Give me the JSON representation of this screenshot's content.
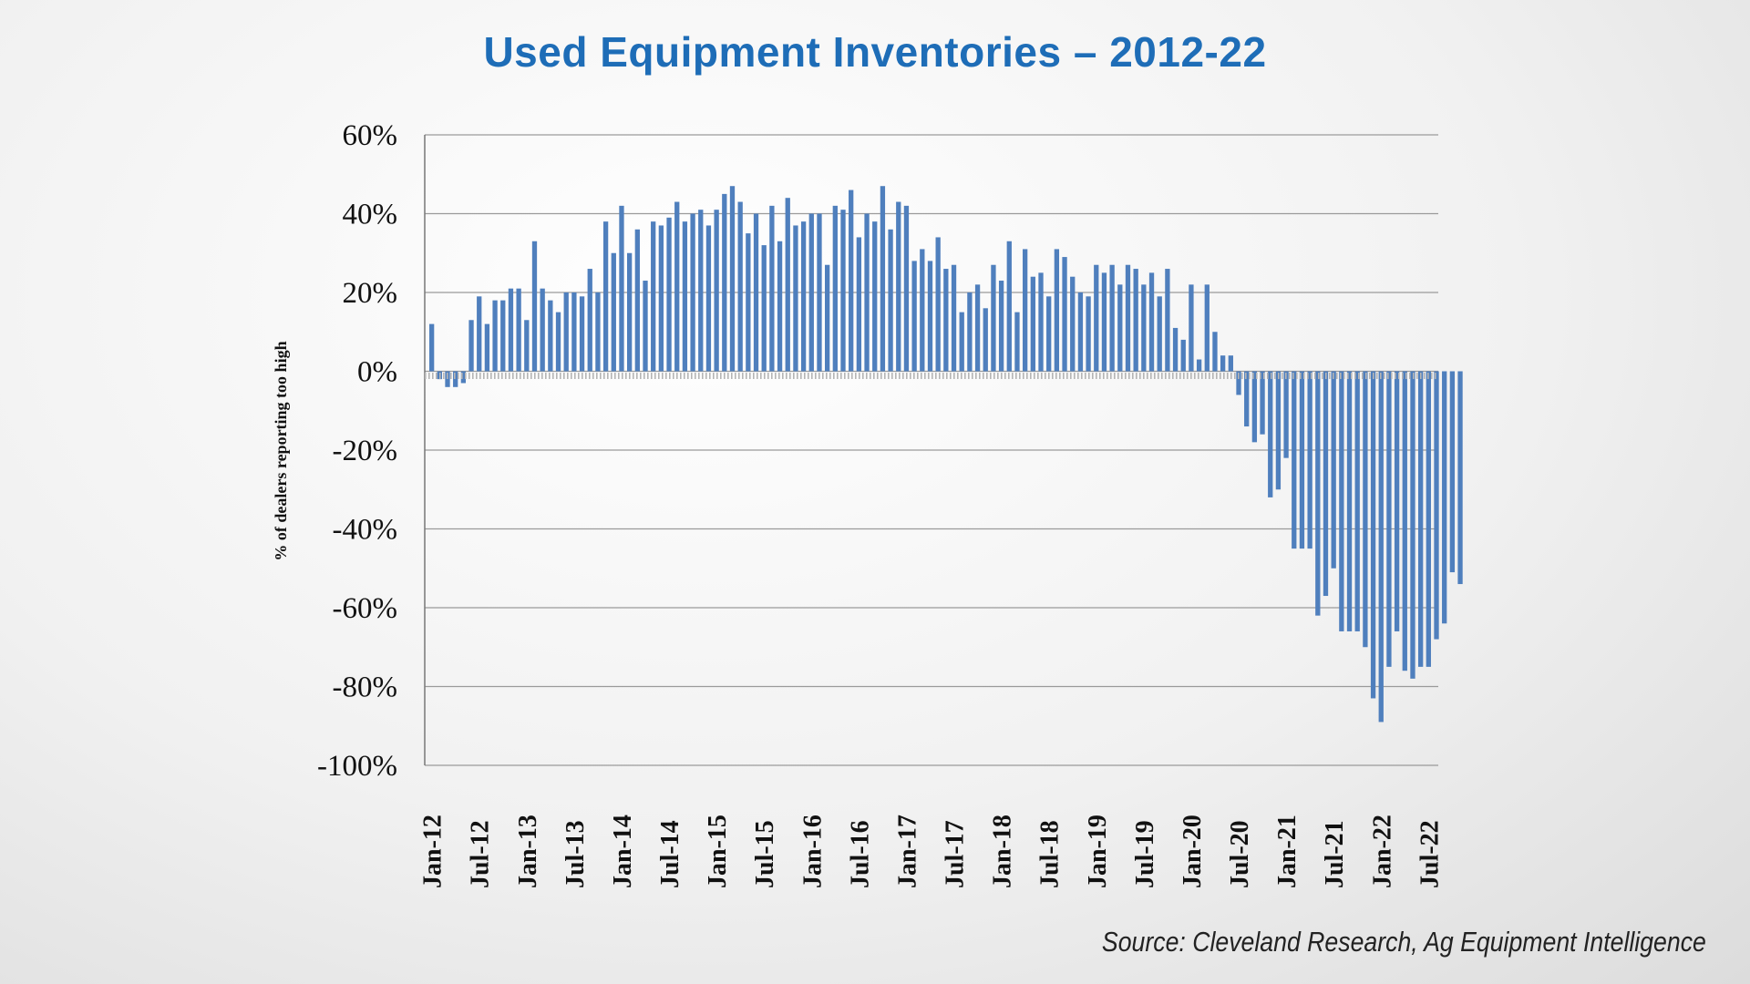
{
  "title": "Used Equipment Inventories – 2012-22",
  "source": "Source: Cleveland Research, Ag Equipment Intelligence",
  "chart_data": {
    "type": "bar",
    "title": "Used Equipment Inventories – 2012-22",
    "xlabel": "",
    "ylabel": "% of dealers reporting too high",
    "ylim": [
      -100,
      60
    ],
    "yticks": [
      60,
      40,
      20,
      0,
      -20,
      -40,
      -60,
      -80,
      -100
    ],
    "ytick_labels": [
      "60%",
      "40%",
      "20%",
      "0%",
      "-20%",
      "-40%",
      "-60%",
      "-80%",
      "-100%"
    ],
    "xtick_labels": [
      "Jan-12",
      "Jul-12",
      "Jan-13",
      "Jul-13",
      "Jan-14",
      "Jul-14",
      "Jan-15",
      "Jul-15",
      "Jan-16",
      "Jul-16",
      "Jan-17",
      "Jul-17",
      "Jan-18",
      "Jul-18",
      "Jan-19",
      "Jul-19",
      "Jan-20",
      "Jul-20",
      "Jan-21",
      "Jul-21",
      "Jan-22",
      "Jul-22"
    ],
    "grid": true,
    "bar_color": "#4f7fbd",
    "series": [
      {
        "values": [
          12,
          -2,
          -4,
          -4,
          -3,
          13,
          19,
          12,
          18,
          18,
          21,
          21,
          13,
          33,
          21,
          18,
          15,
          20,
          20,
          19,
          26,
          20,
          38,
          30,
          42,
          30,
          36,
          23,
          38,
          37,
          39,
          43,
          38,
          40,
          41,
          37,
          41,
          45,
          47,
          43,
          35,
          40,
          32,
          42,
          33,
          44,
          37,
          38,
          40,
          40,
          27,
          42,
          41,
          46,
          34,
          40,
          38,
          47,
          36,
          43,
          42,
          28,
          31,
          28,
          34,
          26,
          27,
          15,
          20,
          22,
          16,
          27,
          23,
          33,
          15,
          31,
          24,
          25,
          19,
          31,
          29,
          24,
          20,
          19,
          27,
          25,
          27,
          22,
          27,
          26,
          22,
          25,
          19,
          26,
          11,
          8,
          22,
          3,
          22,
          10,
          4,
          4,
          -6,
          -14,
          -18,
          -16,
          -32,
          -30,
          -22,
          -45,
          -45,
          -45,
          -62,
          -57,
          -50,
          -66,
          -66,
          -66,
          -70,
          -83,
          -89,
          -75,
          -66,
          -76,
          -78,
          -75,
          -75,
          -68,
          -64,
          -51,
          -54
        ]
      }
    ]
  }
}
